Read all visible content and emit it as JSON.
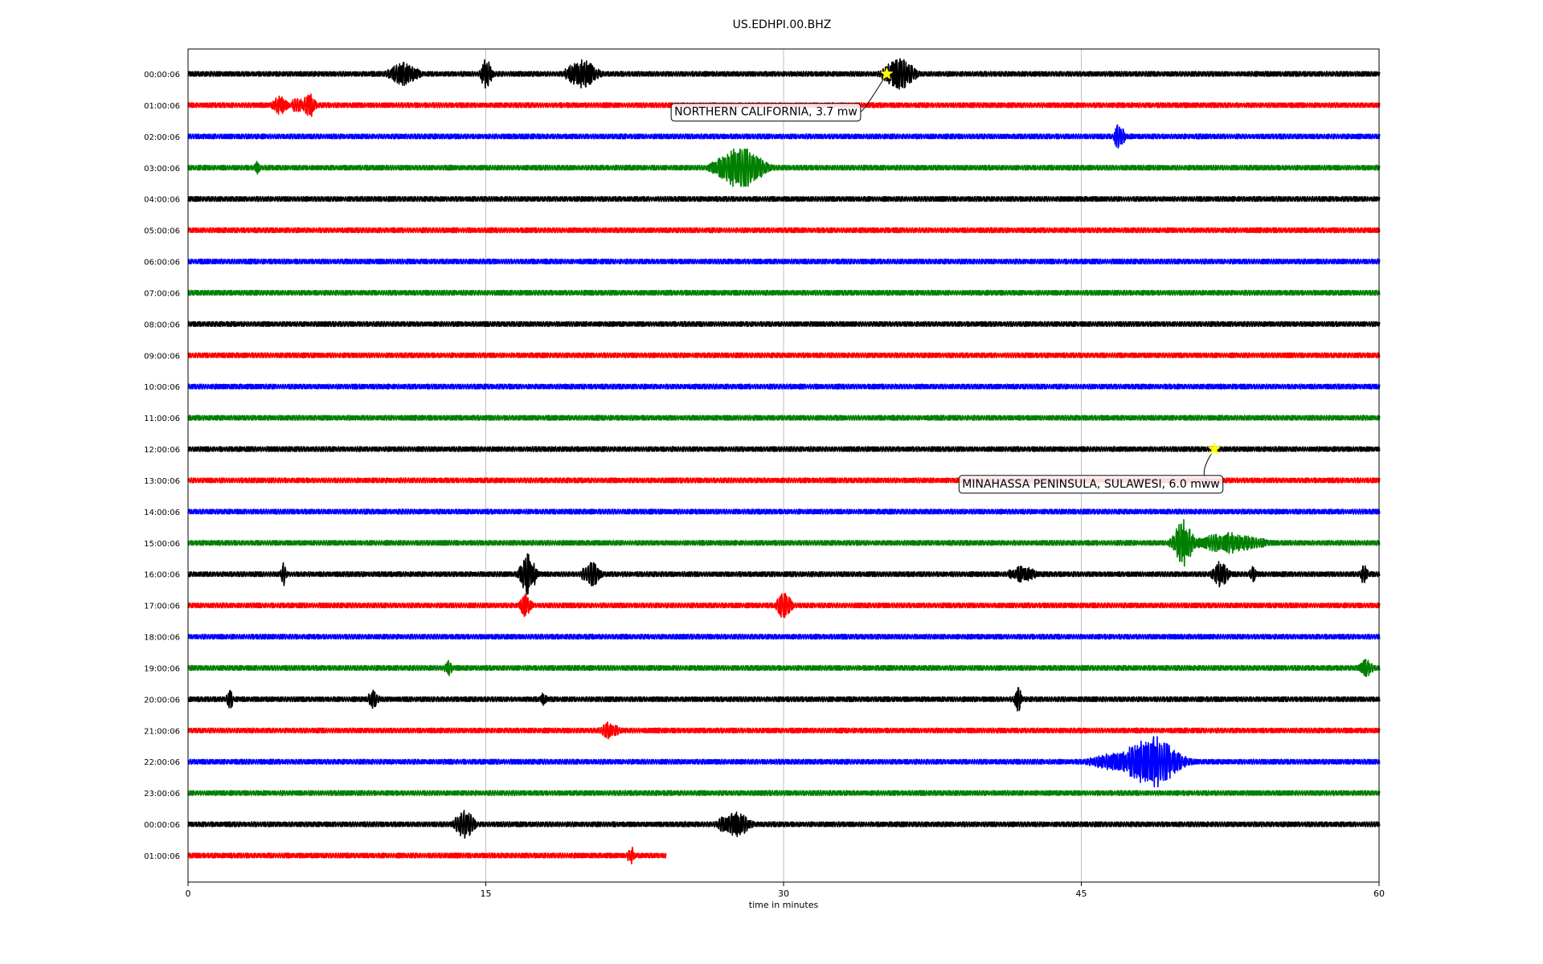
{
  "chart_data": {
    "type": "line",
    "title": "US.EDHPI.00.BHZ",
    "xlabel": "time in minutes",
    "ylabel": "",
    "xlim": [
      0,
      60
    ],
    "xticks": [
      0,
      15,
      30,
      45,
      60
    ],
    "grid": "vertical",
    "trace_colors": [
      "#000000",
      "#ff0000",
      "#0000ff",
      "#008000"
    ],
    "rows": [
      {
        "label": "00:00:06",
        "bursts": [
          [
            10.8,
            0.8,
            0.45
          ],
          [
            15.0,
            0.3,
            0.55
          ],
          [
            19.8,
            0.8,
            0.55
          ],
          [
            35.8,
            0.8,
            0.6
          ]
        ]
      },
      {
        "label": "01:00:06",
        "bursts": [
          [
            4.6,
            0.4,
            0.35
          ],
          [
            5.5,
            0.3,
            0.35
          ],
          [
            6.1,
            0.3,
            0.5
          ]
        ]
      },
      {
        "label": "02:00:06",
        "bursts": [
          [
            46.9,
            0.25,
            0.55
          ]
        ]
      },
      {
        "label": "03:00:06",
        "bursts": [
          [
            3.5,
            0.2,
            0.25
          ],
          [
            27.8,
            1.2,
            0.8
          ]
        ]
      },
      {
        "label": "04:00:06",
        "bursts": []
      },
      {
        "label": "05:00:06",
        "bursts": []
      },
      {
        "label": "06:00:06",
        "bursts": []
      },
      {
        "label": "07:00:06",
        "bursts": []
      },
      {
        "label": "08:00:06",
        "bursts": []
      },
      {
        "label": "09:00:06",
        "bursts": []
      },
      {
        "label": "10:00:06",
        "bursts": []
      },
      {
        "label": "11:00:06",
        "bursts": []
      },
      {
        "label": "12:00:06",
        "bursts": []
      },
      {
        "label": "13:00:06",
        "bursts": []
      },
      {
        "label": "14:00:06",
        "bursts": []
      },
      {
        "label": "15:00:06",
        "bursts": [
          [
            50.1,
            0.5,
            0.9
          ],
          [
            52.5,
            1.8,
            0.4
          ]
        ]
      },
      {
        "label": "16:00:06",
        "bursts": [
          [
            4.8,
            0.15,
            0.45
          ],
          [
            17.1,
            0.4,
            0.8
          ],
          [
            20.3,
            0.5,
            0.45
          ],
          [
            42.0,
            0.8,
            0.3
          ],
          [
            52.0,
            0.4,
            0.5
          ],
          [
            53.6,
            0.2,
            0.3
          ],
          [
            59.2,
            0.2,
            0.4
          ]
        ]
      },
      {
        "label": "17:00:06",
        "bursts": [
          [
            17.0,
            0.3,
            0.45
          ],
          [
            30.0,
            0.4,
            0.5
          ]
        ]
      },
      {
        "label": "18:00:06",
        "bursts": []
      },
      {
        "label": "19:00:06",
        "bursts": [
          [
            13.1,
            0.2,
            0.3
          ],
          [
            59.3,
            0.4,
            0.35
          ]
        ]
      },
      {
        "label": "20:00:06",
        "bursts": [
          [
            2.1,
            0.2,
            0.35
          ],
          [
            9.3,
            0.3,
            0.35
          ],
          [
            17.9,
            0.2,
            0.25
          ],
          [
            41.8,
            0.2,
            0.45
          ]
        ]
      },
      {
        "label": "21:00:06",
        "bursts": [
          [
            21.2,
            0.5,
            0.35
          ]
        ]
      },
      {
        "label": "22:00:06",
        "bursts": [
          [
            46.5,
            1.2,
            0.35
          ],
          [
            48.5,
            1.4,
            1.0
          ]
        ]
      },
      {
        "label": "23:00:06",
        "bursts": []
      },
      {
        "label": "00:00:06",
        "bursts": [
          [
            13.9,
            0.5,
            0.55
          ],
          [
            27.5,
            0.8,
            0.5
          ]
        ]
      },
      {
        "label": "01:00:06",
        "bursts": [
          [
            22.3,
            0.2,
            0.35
          ]
        ],
        "end_minute": 24.1
      }
    ],
    "events": [
      {
        "label": "NORTHERN CALIFORNIA, 3.7 mw",
        "row": 0,
        "minute": 35.2,
        "label_row": 1.2,
        "label_minute": 24.5
      },
      {
        "label": "MINAHASSA PENINSULA, SULAWESI, 6.0 mww",
        "row": 12,
        "minute": 51.7,
        "label_row": 13.1,
        "label_minute": 39.0
      }
    ]
  }
}
